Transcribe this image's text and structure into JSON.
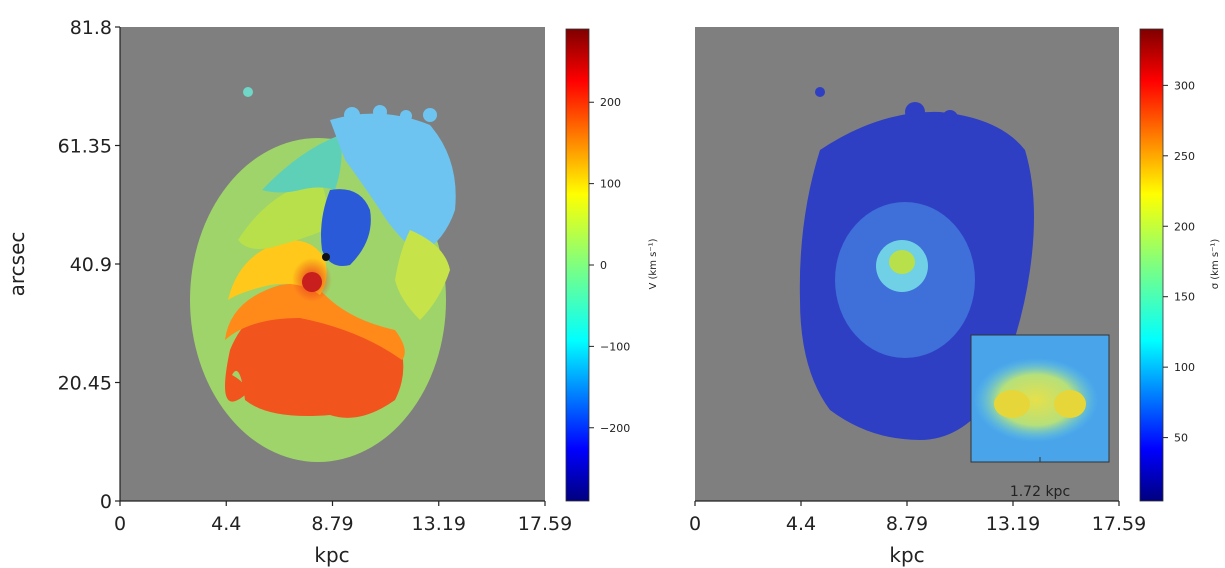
{
  "chart_data": [
    {
      "type": "heatmap",
      "panel": "velocity",
      "xlabel": "kpc",
      "ylabel": "arcsec",
      "xticks": [
        "0",
        "4.4",
        "8.79",
        "13.19",
        "17.59"
      ],
      "yticks": [
        "0",
        "20.45",
        "40.9",
        "61.35",
        "81.8"
      ],
      "xlim": [
        0,
        17.59
      ],
      "ylim": [
        0,
        81.8
      ],
      "background": "#7f7f7f",
      "colorbar": {
        "label": "V (km s⁻¹)",
        "ticks": [
          "200",
          "100",
          "0",
          "−100",
          "−200"
        ],
        "tick_values": [
          200,
          100,
          0,
          -100,
          -200
        ],
        "range": [
          -290,
          290
        ],
        "colormap": "jet"
      }
    },
    {
      "type": "heatmap",
      "panel": "dispersion",
      "xlabel": "kpc",
      "xticks": [
        "0",
        "4.4",
        "8.79",
        "13.19",
        "17.59"
      ],
      "xlim": [
        0,
        17.59
      ],
      "ylim": [
        0,
        81.8
      ],
      "background": "#7f7f7f",
      "colorbar": {
        "label": "σ (km s⁻¹)",
        "ticks": [
          "300",
          "250",
          "200",
          "150",
          "100",
          "50"
        ],
        "tick_values": [
          300,
          250,
          200,
          150,
          100,
          50
        ],
        "range": [
          5,
          340
        ],
        "colormap": "jet"
      },
      "inset": {
        "scale_label": "1.72 kpc"
      }
    }
  ]
}
